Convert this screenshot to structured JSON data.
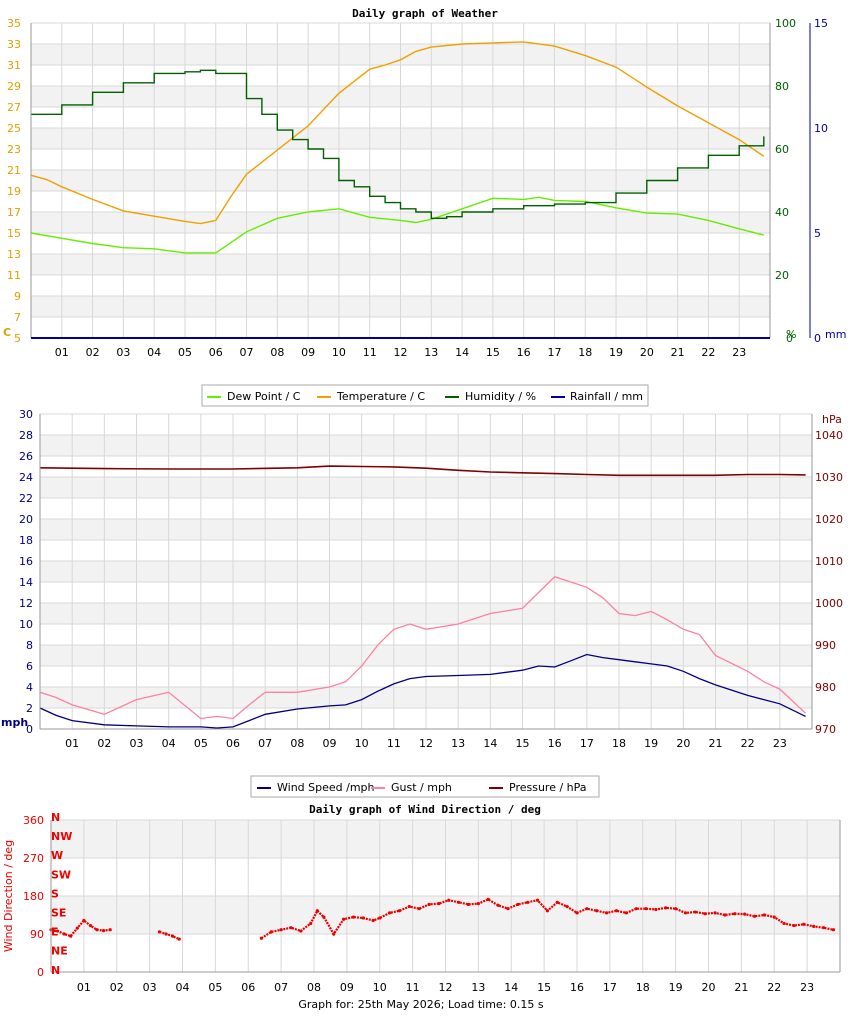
{
  "footer": "Graph for: 25th May 2026; Load time: 0.15 s",
  "chart_data": [
    {
      "id": "weather",
      "type": "line",
      "title": "Daily graph of Weather",
      "x_unit": "hour",
      "x_ticks": [
        "01",
        "02",
        "03",
        "04",
        "05",
        "06",
        "07",
        "08",
        "09",
        "10",
        "11",
        "12",
        "13",
        "14",
        "15",
        "16",
        "17",
        "18",
        "19",
        "20",
        "21",
        "22",
        "23"
      ],
      "xlim": [
        0,
        24
      ],
      "grid": true,
      "legend_position": "bottom",
      "left_axis": {
        "label": "C",
        "ylim": [
          5,
          35
        ],
        "ticks": [
          5,
          7,
          9,
          11,
          13,
          15,
          17,
          19,
          21,
          23,
          25,
          27,
          29,
          31,
          33,
          35
        ],
        "color": "#e0a000"
      },
      "right_axis_1": {
        "label": "%",
        "ylim": [
          0,
          100
        ],
        "ticks": [
          0,
          20,
          40,
          60,
          80,
          100
        ],
        "color": "#006000"
      },
      "right_axis_2": {
        "label": "mm",
        "ylim": [
          0,
          15
        ],
        "ticks": [
          0,
          5,
          10,
          15
        ],
        "color": "#0000a0"
      },
      "series": [
        {
          "name": "Dew Point / C",
          "axis": "left",
          "color": "#66ee00",
          "x": [
            0,
            1,
            2,
            3,
            4,
            5,
            5.5,
            6,
            7,
            8,
            9,
            10,
            11,
            12,
            12.5,
            13,
            14,
            15,
            16,
            16.5,
            17,
            18,
            19,
            20,
            21,
            22,
            23,
            23.8
          ],
          "y": [
            15,
            14.5,
            14,
            13.6,
            13.5,
            13.1,
            13.1,
            13.1,
            15.1,
            16.4,
            17,
            17.3,
            16.5,
            16.2,
            16,
            16.3,
            17.3,
            18.3,
            18.2,
            18.4,
            18.1,
            18,
            17.4,
            16.9,
            16.8,
            16.2,
            15.4,
            14.8
          ]
        },
        {
          "name": "Temperature / C",
          "axis": "left",
          "color": "#f0a000",
          "x": [
            0,
            0.5,
            1,
            2,
            3,
            4,
            5,
            5.5,
            6,
            6.5,
            7,
            8,
            9,
            10,
            11,
            11.5,
            12,
            12.5,
            13,
            14,
            15,
            16,
            17,
            18,
            19,
            20,
            21,
            22,
            23,
            23.8
          ],
          "y": [
            20.5,
            20.1,
            19.4,
            18.2,
            17.1,
            16.6,
            16.1,
            15.9,
            16.2,
            18.5,
            20.6,
            22.9,
            25.2,
            28.3,
            30.6,
            31,
            31.5,
            32.3,
            32.7,
            33,
            33.1,
            33.2,
            32.8,
            31.9,
            30.8,
            28.9,
            27.1,
            25.5,
            23.9,
            22.3
          ]
        },
        {
          "name": "Humidity / %",
          "axis": "right_1",
          "color": "#006000",
          "x": [
            0,
            1,
            2,
            3,
            4,
            5,
            5.5,
            6,
            7,
            7.5,
            8,
            8.5,
            9,
            9.5,
            10,
            10.5,
            11,
            11.5,
            12,
            12.5,
            13,
            13.5,
            14,
            15,
            16,
            17,
            18,
            19,
            20,
            21,
            22,
            23,
            23.8
          ],
          "y": [
            71,
            74,
            78,
            81,
            84,
            84.5,
            85,
            84,
            76,
            71,
            66,
            63,
            60,
            57,
            50,
            48,
            45,
            43,
            41,
            40,
            38,
            38.5,
            40,
            41,
            42,
            42.5,
            43,
            46,
            50,
            54,
            58,
            61,
            64
          ]
        },
        {
          "name": "Rainfall / mm",
          "axis": "right_2",
          "color": "#0000a0",
          "x": [
            0,
            24
          ],
          "y": [
            0,
            0
          ]
        }
      ]
    },
    {
      "id": "wind",
      "type": "line",
      "title": "",
      "x_unit": "hour",
      "x_ticks": [
        "01",
        "02",
        "03",
        "04",
        "05",
        "06",
        "07",
        "08",
        "09",
        "10",
        "11",
        "12",
        "13",
        "14",
        "15",
        "16",
        "17",
        "18",
        "19",
        "20",
        "21",
        "22",
        "23"
      ],
      "xlim": [
        0,
        24
      ],
      "grid": true,
      "legend_position": "bottom",
      "left_axis": {
        "label": "mph",
        "ylim": [
          0,
          30
        ],
        "ticks": [
          0,
          2,
          4,
          6,
          8,
          10,
          12,
          14,
          16,
          18,
          20,
          22,
          24,
          26,
          28,
          30
        ],
        "color": "#000080"
      },
      "right_axis": {
        "label": "hPa",
        "ylim": [
          970,
          1045
        ],
        "ticks": [
          970,
          980,
          990,
          1000,
          1010,
          1020,
          1030,
          1040
        ],
        "color": "#800000"
      },
      "series": [
        {
          "name": "Wind Speed /mph",
          "axis": "left",
          "color": "#000080",
          "x": [
            0,
            0.5,
            1,
            2,
            3,
            4,
            5,
            5.5,
            6,
            6.5,
            7,
            8,
            9,
            9.5,
            10,
            10.5,
            11,
            11.5,
            12,
            13,
            14,
            15,
            15.5,
            16,
            16.5,
            17,
            17.5,
            18,
            18.5,
            19,
            19.5,
            20,
            20.5,
            21,
            22,
            22.5,
            23,
            23.8
          ],
          "y": [
            2,
            1.3,
            0.8,
            0.4,
            0.3,
            0.2,
            0.2,
            0.1,
            0.2,
            0.8,
            1.4,
            1.9,
            2.2,
            2.3,
            2.8,
            3.6,
            4.3,
            4.8,
            5,
            5.1,
            5.2,
            5.6,
            6,
            5.9,
            6.5,
            7.1,
            6.8,
            6.6,
            6.4,
            6.2,
            6,
            5.5,
            4.8,
            4.2,
            3.2,
            2.8,
            2.4,
            1.2
          ]
        },
        {
          "name": "Gust / mph",
          "axis": "left",
          "color": "#ff80a0",
          "x": [
            0,
            0.5,
            1,
            2,
            3,
            4,
            5,
            5.5,
            6,
            6.5,
            7,
            8,
            9,
            9.5,
            10,
            10.5,
            11,
            11.5,
            12,
            13,
            14,
            15,
            15.5,
            16,
            16.5,
            17,
            17.5,
            18,
            18.5,
            19,
            19.5,
            20,
            20.5,
            21,
            22,
            22.5,
            23,
            23.8
          ],
          "y": [
            3.5,
            3,
            2.3,
            1.4,
            2.8,
            3.5,
            1,
            1.2,
            1,
            2.3,
            3.5,
            3.5,
            4,
            4.5,
            6,
            8,
            9.5,
            10,
            9.5,
            10,
            11,
            11.5,
            13,
            14.5,
            14,
            13.5,
            12.5,
            11,
            10.8,
            11.2,
            10.4,
            9.5,
            9,
            7,
            5.5,
            4.5,
            3.8,
            1.5
          ]
        },
        {
          "name": "Pressure / hPa",
          "axis": "right",
          "color": "#800000",
          "x": [
            0,
            2,
            4,
            6,
            8,
            9,
            10,
            11,
            12,
            13,
            14,
            15,
            16,
            17,
            18,
            19,
            20,
            21,
            22,
            23,
            23.8
          ],
          "y": [
            1032.2,
            1032,
            1031.9,
            1031.9,
            1032.2,
            1032.6,
            1032.5,
            1032.4,
            1032.1,
            1031.6,
            1031.2,
            1031,
            1030.8,
            1030.6,
            1030.4,
            1030.4,
            1030.4,
            1030.4,
            1030.6,
            1030.6,
            1030.5
          ]
        }
      ]
    },
    {
      "id": "direction",
      "type": "scatter",
      "title": "Daily graph of Wind Direction / deg",
      "ylabel": "Wind Direction / deg",
      "x_ticks": [
        "01",
        "02",
        "03",
        "04",
        "05",
        "06",
        "07",
        "08",
        "09",
        "10",
        "11",
        "12",
        "13",
        "14",
        "15",
        "16",
        "17",
        "18",
        "19",
        "20",
        "21",
        "22",
        "23"
      ],
      "xlim": [
        0,
        24
      ],
      "ylim": [
        0,
        360
      ],
      "y_ticks": [
        0,
        90,
        180,
        270,
        360
      ],
      "compass_labels": [
        "N",
        "NW",
        "W",
        "SW",
        "S",
        "SE",
        "E",
        "NE",
        "N"
      ],
      "grid": true,
      "color": "#ee0000",
      "segments": [
        {
          "x": [
            0,
            0.2,
            0.4,
            0.6,
            0.8,
            1,
            1.2,
            1.4,
            1.6,
            1.8
          ],
          "y": [
            100,
            97,
            90,
            85,
            104,
            122,
            110,
            100,
            98,
            100
          ]
        },
        {
          "x": [
            3.3,
            3.5,
            3.7,
            3.9
          ],
          "y": [
            95,
            90,
            85,
            78
          ]
        },
        {
          "x": [
            6.4,
            6.7,
            7,
            7.3,
            7.6,
            7.9,
            8.1,
            8.3,
            8.6,
            8.9,
            9.2,
            9.5,
            9.8,
            10,
            10.3,
            10.6,
            10.9,
            11.2,
            11.5,
            11.8,
            12.1,
            12.4,
            12.7,
            13,
            13.3,
            13.6,
            13.9,
            14.2,
            14.5,
            14.8,
            15.1,
            15.4,
            15.7,
            16,
            16.3,
            16.6,
            16.9,
            17.2,
            17.5,
            17.8,
            18.1,
            18.4,
            18.7,
            19,
            19.3,
            19.6,
            19.9,
            20.2,
            20.5,
            20.8,
            21.1,
            21.4,
            21.7,
            22,
            22.3,
            22.6,
            22.9,
            23.2,
            23.5,
            23.8
          ],
          "y": [
            80,
            95,
            100,
            105,
            97,
            115,
            145,
            130,
            90,
            125,
            130,
            128,
            122,
            128,
            140,
            145,
            155,
            150,
            160,
            162,
            170,
            165,
            160,
            162,
            172,
            158,
            150,
            160,
            165,
            170,
            145,
            165,
            155,
            140,
            150,
            145,
            140,
            145,
            140,
            150,
            150,
            148,
            152,
            150,
            140,
            142,
            138,
            140,
            135,
            138,
            137,
            132,
            135,
            130,
            115,
            110,
            113,
            108,
            105,
            100
          ]
        }
      ]
    }
  ]
}
